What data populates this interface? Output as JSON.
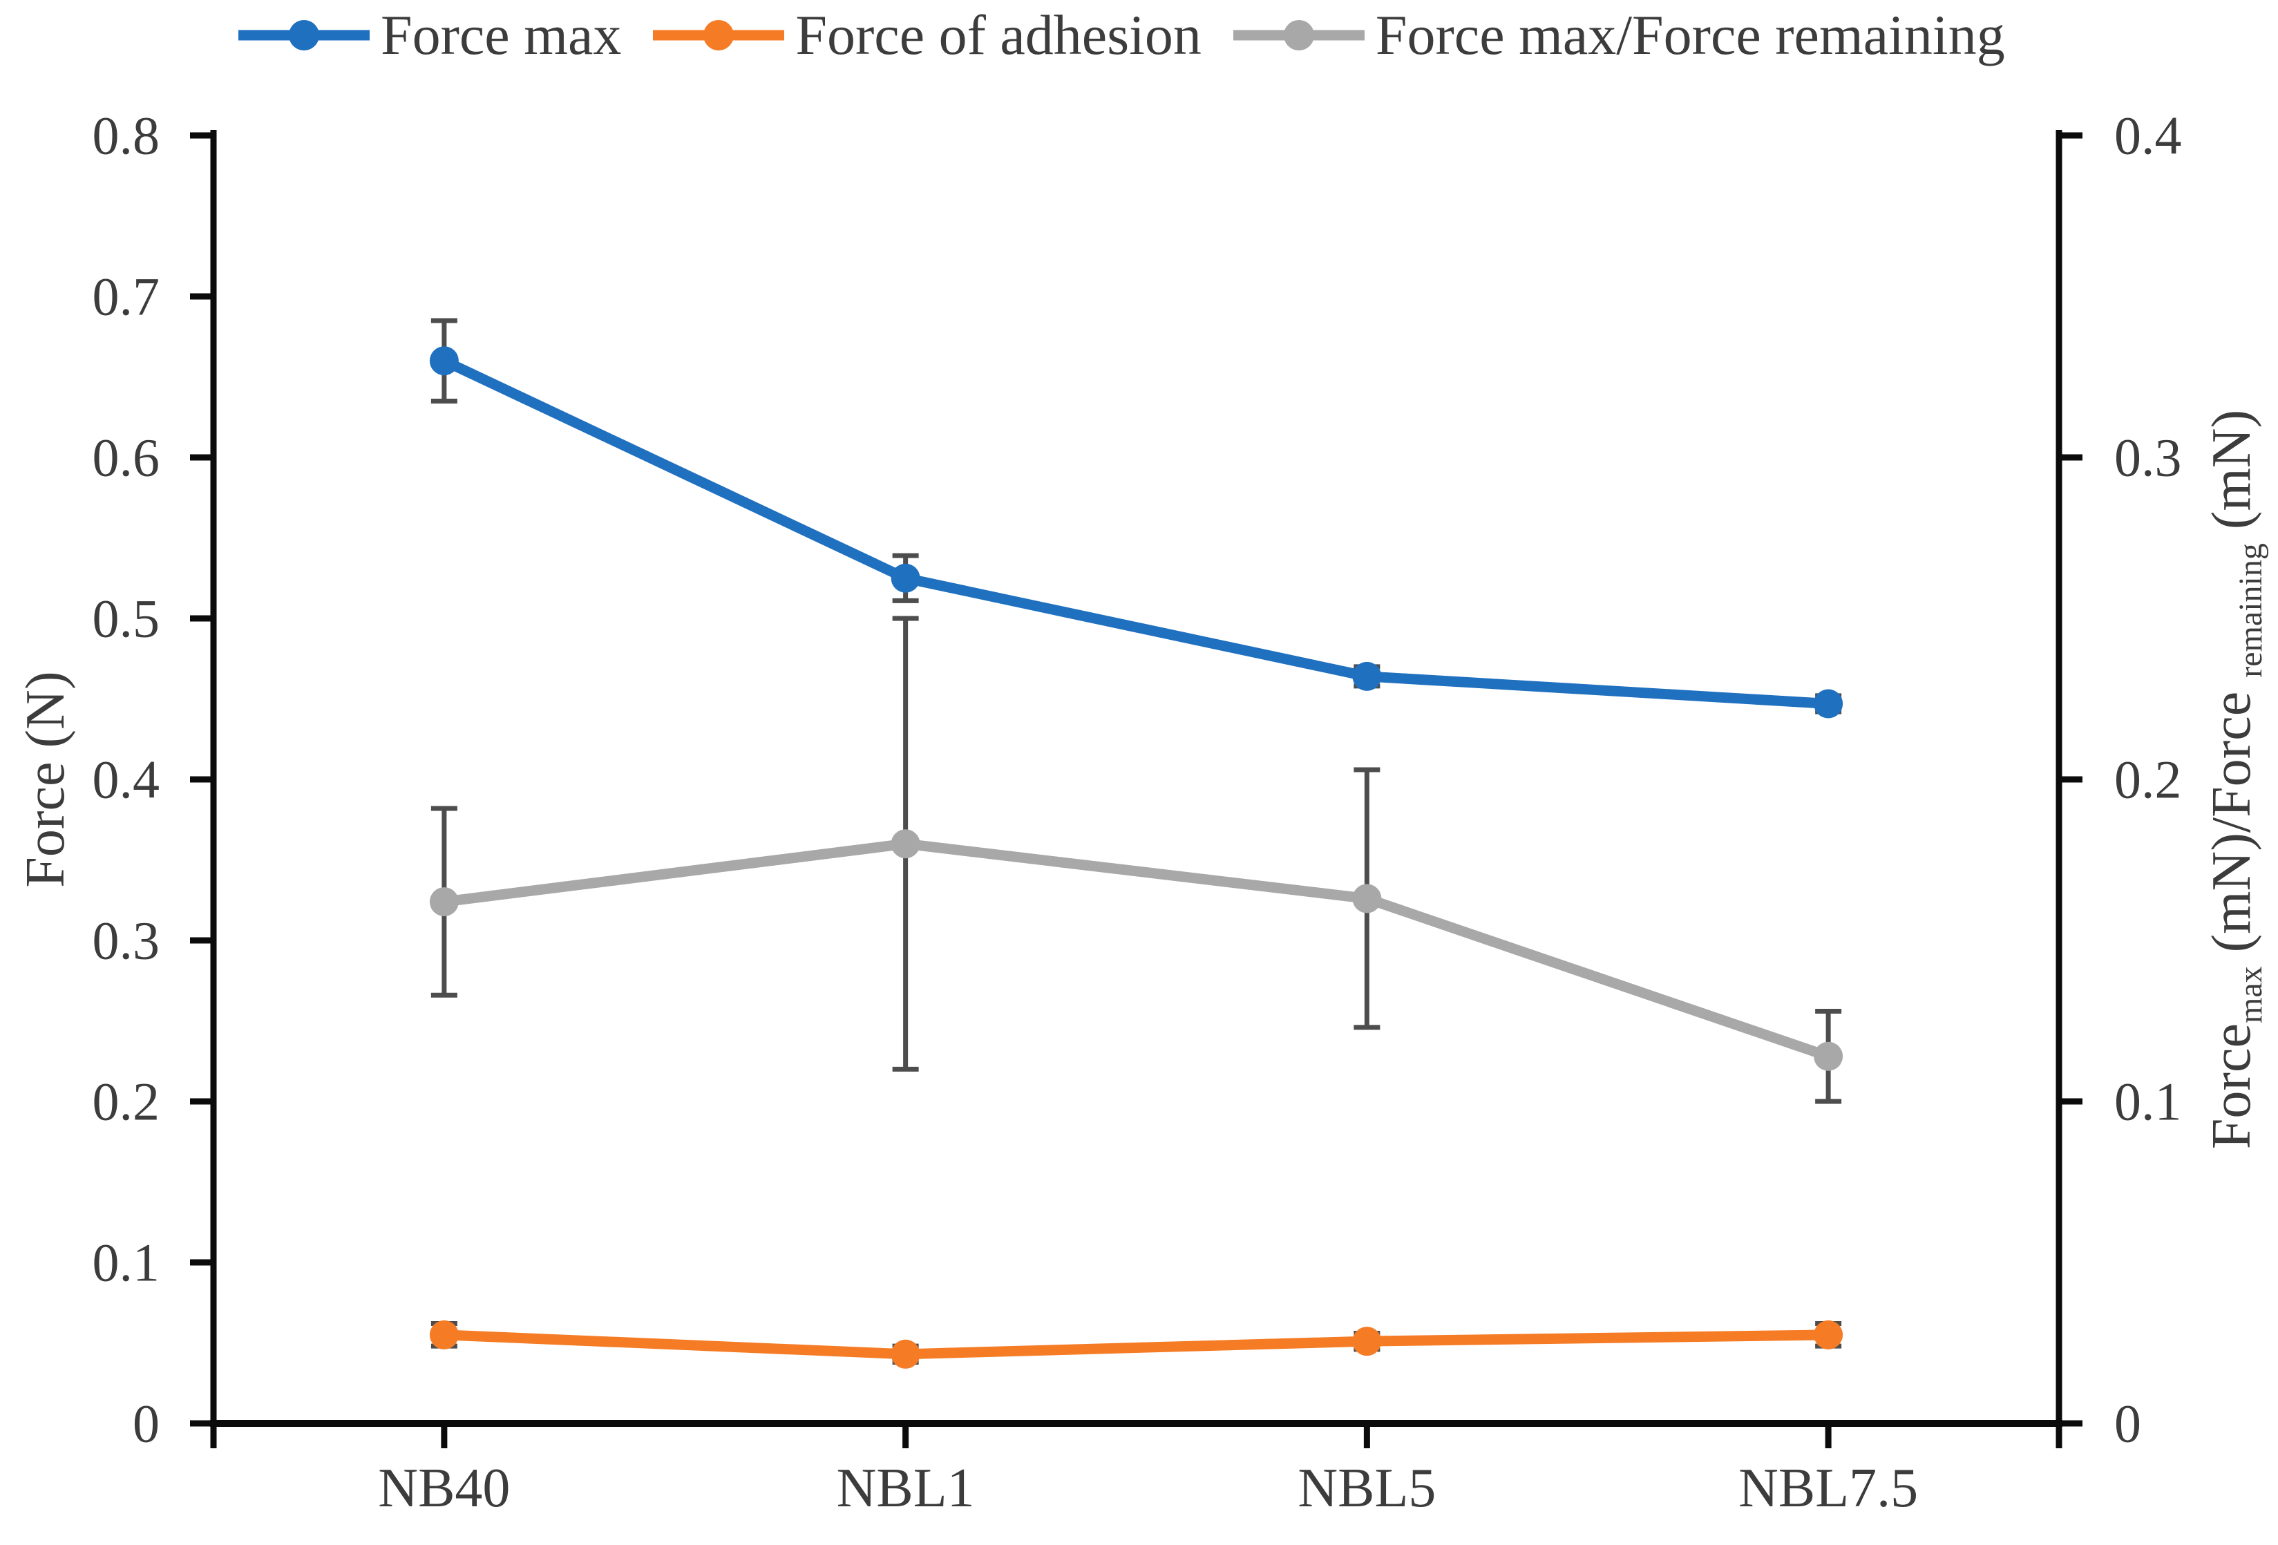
{
  "legend": {
    "items": [
      {
        "id": "force-max",
        "label": "Force max",
        "color": "#2070C0"
      },
      {
        "id": "force-of-adhesion",
        "label": "Force of adhesion",
        "color": "#F57B25"
      },
      {
        "id": "force-max-remaining",
        "label": "Force max/Force remaining",
        "color": "#A8A8A8"
      }
    ]
  },
  "chart_data": {
    "type": "line",
    "categories": [
      "NB40",
      "NBL1",
      "NBL5",
      "NBL7.5"
    ],
    "series": [
      {
        "name": "Force max",
        "axis": "left",
        "color": "#2070C0",
        "values": [
          0.66,
          0.525,
          0.464,
          0.447
        ],
        "errors": [
          0.025,
          0.014,
          0.006,
          0.005
        ]
      },
      {
        "name": "Force of adhesion",
        "axis": "left",
        "color": "#F57B25",
        "values": [
          0.055,
          0.043,
          0.051,
          0.055
        ],
        "errors": [
          0.007,
          0.005,
          0.005,
          0.007
        ]
      },
      {
        "name": "Force max/Force remaining",
        "axis": "right",
        "color": "#A8A8A8",
        "values": [
          0.162,
          0.18,
          0.163,
          0.114
        ],
        "errors": [
          0.029,
          0.07,
          0.04,
          0.014
        ]
      }
    ],
    "left_axis": {
      "title": "Force (N)",
      "min": 0,
      "max": 0.8,
      "step": 0.1,
      "tick_labels": [
        "0",
        "0.1",
        "0.2",
        "0.3",
        "0.4",
        "0.5",
        "0.6",
        "0.7",
        "0.8"
      ]
    },
    "right_axis": {
      "min": 0,
      "max": 0.4,
      "step": 0.1,
      "tick_labels": [
        "0",
        "0.1",
        "0.2",
        "0.3",
        "0.4"
      ],
      "title_parts": [
        {
          "text": "Force"
        },
        {
          "text": "max",
          "sub": true
        },
        {
          "text": " (mN)/Force "
        },
        {
          "text": "remaining",
          "sub": true
        },
        {
          "text": " (mN)"
        }
      ]
    },
    "xlabel": "",
    "grid": false,
    "legend_position": "top",
    "axis_color": "#0b0b0b",
    "tick_label_color": "#3c3c3c",
    "error_bar_color": "#4d4d4d"
  }
}
